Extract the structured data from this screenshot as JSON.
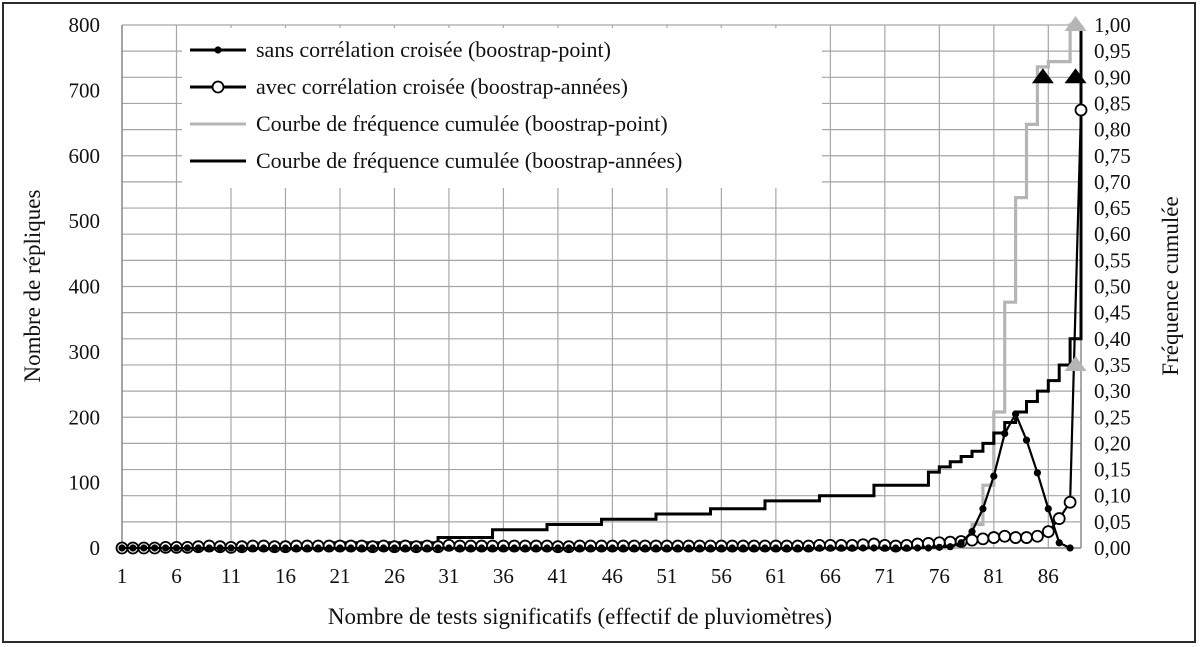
{
  "chart_data": {
    "type": "line",
    "title": "",
    "xlabel": "Nombre de tests significatifs (effectif de pluviomètres)",
    "ylabel": "Nombre de répliques",
    "y2label": "Fréquence cumulée",
    "xlim": [
      1,
      89
    ],
    "ylim": [
      0,
      800
    ],
    "y2lim": [
      0,
      1
    ],
    "x_ticks": [
      "1",
      "6",
      "11",
      "16",
      "21",
      "26",
      "31",
      "36",
      "41",
      "46",
      "51",
      "56",
      "61",
      "66",
      "71",
      "76",
      "81",
      "86"
    ],
    "y_ticks": [
      "0",
      "100",
      "200",
      "300",
      "400",
      "500",
      "600",
      "700",
      "800"
    ],
    "y2_ticks": [
      "0,00",
      "0,05",
      "0,10",
      "0,15",
      "0,20",
      "0,25",
      "0,30",
      "0,35",
      "0,40",
      "0,45",
      "0,50",
      "0,55",
      "0,60",
      "0,65",
      "0,70",
      "0,75",
      "0,80",
      "0,85",
      "0,90",
      "0,95",
      "1,00"
    ],
    "grid": true,
    "legend_position": "top-left",
    "series": [
      {
        "name": "sans corrélation croisée (boostrap-point)",
        "axis": "left",
        "color": "#000000",
        "marker": "dot",
        "x": [
          1,
          2,
          3,
          4,
          5,
          6,
          7,
          8,
          9,
          10,
          11,
          12,
          13,
          14,
          15,
          16,
          17,
          18,
          19,
          20,
          21,
          22,
          23,
          24,
          25,
          26,
          27,
          28,
          29,
          30,
          31,
          32,
          33,
          34,
          35,
          36,
          37,
          38,
          39,
          40,
          41,
          42,
          43,
          44,
          45,
          46,
          47,
          48,
          49,
          50,
          51,
          52,
          53,
          54,
          55,
          56,
          57,
          58,
          59,
          60,
          61,
          62,
          63,
          64,
          65,
          66,
          67,
          68,
          69,
          70,
          71,
          72,
          73,
          74,
          75,
          76,
          77,
          78,
          79,
          80,
          81,
          82,
          83,
          84,
          85,
          86,
          87,
          88
        ],
        "values": [
          0,
          0,
          0,
          0,
          0,
          0,
          0,
          0,
          0,
          0,
          0,
          0,
          0,
          0,
          0,
          0,
          0,
          0,
          0,
          0,
          0,
          0,
          0,
          0,
          0,
          0,
          0,
          0,
          0,
          0,
          0,
          0,
          0,
          0,
          0,
          0,
          0,
          0,
          0,
          0,
          0,
          0,
          0,
          0,
          0,
          0,
          0,
          0,
          0,
          0,
          0,
          0,
          0,
          0,
          0,
          0,
          0,
          0,
          0,
          0,
          0,
          0,
          0,
          0,
          0,
          0,
          0,
          0,
          0,
          0,
          0,
          0,
          0,
          0,
          0,
          1,
          2,
          8,
          25,
          60,
          110,
          175,
          205,
          165,
          115,
          60,
          8,
          0
        ]
      },
      {
        "name": "avec corrélation croisée (boostrap-années)",
        "axis": "left",
        "color": "#000000",
        "marker": "circle",
        "x": [
          1,
          2,
          3,
          4,
          5,
          6,
          7,
          8,
          9,
          10,
          11,
          12,
          13,
          14,
          15,
          16,
          17,
          18,
          19,
          20,
          21,
          22,
          23,
          24,
          25,
          26,
          27,
          28,
          29,
          30,
          31,
          32,
          33,
          34,
          35,
          36,
          37,
          38,
          39,
          40,
          41,
          42,
          43,
          44,
          45,
          46,
          47,
          48,
          49,
          50,
          51,
          52,
          53,
          54,
          55,
          56,
          57,
          58,
          59,
          60,
          61,
          62,
          63,
          64,
          65,
          66,
          67,
          68,
          69,
          70,
          71,
          72,
          73,
          74,
          75,
          76,
          77,
          78,
          79,
          80,
          81,
          82,
          83,
          84,
          85,
          86,
          87,
          88,
          89
        ],
        "values": [
          0,
          0,
          0,
          0,
          1,
          1,
          1,
          2,
          3,
          2,
          1,
          2,
          3,
          3,
          2,
          2,
          3,
          3,
          3,
          3,
          3,
          3,
          3,
          2,
          3,
          2,
          3,
          2,
          3,
          2,
          4,
          3,
          3,
          3,
          3,
          3,
          3,
          3,
          3,
          3,
          2,
          2,
          3,
          3,
          3,
          3,
          3,
          3,
          3,
          3,
          3,
          3,
          3,
          3,
          3,
          3,
          3,
          3,
          3,
          3,
          3,
          3,
          3,
          3,
          4,
          4,
          4,
          4,
          5,
          6,
          4,
          3,
          4,
          6,
          7,
          8,
          9,
          10,
          12,
          14,
          16,
          18,
          16,
          16,
          18,
          25,
          45,
          70,
          670
        ]
      },
      {
        "name": "Courbe de fréquence cumulée (boostrap-point)",
        "axis": "right",
        "color": "#b5b5b5",
        "marker": "none",
        "x": [
          1,
          76,
          77,
          78,
          79,
          80,
          81,
          82,
          83,
          84,
          85,
          86,
          87,
          88,
          89
        ],
        "values": [
          0,
          0,
          0.002,
          0.012,
          0.045,
          0.12,
          0.26,
          0.47,
          0.67,
          0.81,
          0.92,
          0.93,
          0.93,
          1.0,
          1.0
        ]
      },
      {
        "name": "Courbe de fréquence cumulée (boostrap-années)",
        "axis": "right",
        "color": "#000000",
        "marker": "none",
        "x": [
          1,
          20,
          30,
          35,
          40,
          45,
          50,
          55,
          60,
          65,
          70,
          75,
          76,
          77,
          78,
          79,
          80,
          81,
          82,
          83,
          84,
          85,
          86,
          87,
          88,
          89
        ],
        "values": [
          0,
          0.01,
          0.02,
          0.035,
          0.045,
          0.055,
          0.065,
          0.075,
          0.09,
          0.1,
          0.12,
          0.145,
          0.155,
          0.165,
          0.175,
          0.185,
          0.2,
          0.22,
          0.24,
          0.26,
          0.28,
          0.3,
          0.32,
          0.35,
          0.4,
          1.0
        ]
      }
    ],
    "annotations": [
      {
        "type": "triangle",
        "color": "#000000",
        "x": 85.5,
        "y2": 0.9
      },
      {
        "type": "triangle",
        "color": "#000000",
        "x": 88.5,
        "y2": 0.9
      },
      {
        "type": "triangle",
        "color": "#b5b5b5",
        "x": 88.5,
        "y2": 1.0
      },
      {
        "type": "triangle",
        "color": "#b5b5b5",
        "x": 88.5,
        "y2": 0.35
      }
    ]
  }
}
